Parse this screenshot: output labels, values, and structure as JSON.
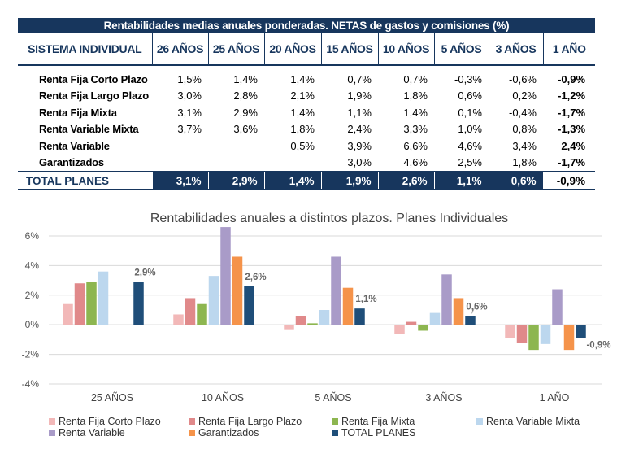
{
  "table": {
    "title": "Rentabilidades medias anuales ponderadas. NETAS de gastos y comisiones (%)",
    "headers": [
      "SISTEMA INDIVIDUAL",
      "26 AÑOS",
      "25 AÑOS",
      "20 AÑOS",
      "15 AÑOS",
      "10 AÑOS",
      "5 AÑOS",
      "3 AÑOS",
      "1 AÑO"
    ],
    "rows": [
      {
        "label": "Renta Fija Corto Plazo",
        "values": [
          "1,5%",
          "1,4%",
          "1,4%",
          "0,7%",
          "0,7%",
          "-0,3%",
          "-0,6%",
          "-0,9%"
        ]
      },
      {
        "label": "Renta Fija Largo Plazo",
        "values": [
          "3,0%",
          "2,8%",
          "2,1%",
          "1,9%",
          "1,8%",
          "0,6%",
          "0,2%",
          "-1,2%"
        ]
      },
      {
        "label": "Renta Fija Mixta",
        "values": [
          "3,1%",
          "2,9%",
          "1,4%",
          "1,1%",
          "1,4%",
          "0,1%",
          "-0,4%",
          "-1,7%"
        ]
      },
      {
        "label": "Renta Variable Mixta",
        "values": [
          "3,7%",
          "3,6%",
          "1,8%",
          "2,4%",
          "3,3%",
          "1,0%",
          "0,8%",
          "-1,3%"
        ]
      },
      {
        "label": "Renta Variable",
        "values": [
          "",
          "",
          "0,5%",
          "3,9%",
          "6,6%",
          "4,6%",
          "3,4%",
          "2,4%"
        ]
      },
      {
        "label": "Garantizados",
        "values": [
          "",
          "",
          "",
          "3,0%",
          "4,6%",
          "2,5%",
          "1,8%",
          "-1,7%"
        ]
      }
    ],
    "total": {
      "label": "TOTAL PLANES",
      "values": [
        "3,1%",
        "2,9%",
        "1,4%",
        "1,9%",
        "2,6%",
        "1,1%",
        "0,6%",
        "-0,9%"
      ]
    }
  },
  "chart_data": {
    "type": "bar",
    "title": "Rentabilidades anuales a distintos plazos. Planes Individuales",
    "categories": [
      "25 AÑOS",
      "10 AÑOS",
      "5 AÑOS",
      "3 AÑOS",
      "1 AÑO"
    ],
    "ylim": [
      -4,
      6
    ],
    "yticks": [
      -4,
      -2,
      0,
      2,
      4,
      6
    ],
    "ytick_labels": [
      "-4%",
      "-2%",
      "0%",
      "2%",
      "4%",
      "6%"
    ],
    "grid": true,
    "legend_position": "bottom",
    "series": [
      {
        "name": "Renta Fija Corto Plazo",
        "color": "#f2b8b8",
        "values": [
          1.4,
          0.7,
          -0.3,
          -0.6,
          -0.9
        ]
      },
      {
        "name": "Renta Fija Largo Plazo",
        "color": "#e0898a",
        "values": [
          2.8,
          1.8,
          0.6,
          0.2,
          -1.2
        ]
      },
      {
        "name": "Renta Fija Mixta",
        "color": "#8db650",
        "values": [
          2.9,
          1.4,
          0.1,
          -0.4,
          -1.7
        ]
      },
      {
        "name": "Renta Variable Mixta",
        "color": "#bcd7ee",
        "values": [
          3.6,
          3.3,
          1.0,
          0.8,
          -1.3
        ]
      },
      {
        "name": "Renta Variable",
        "color": "#a99bc8",
        "values": [
          null,
          6.6,
          4.6,
          3.4,
          2.4
        ]
      },
      {
        "name": "Garantizados",
        "color": "#f5934a",
        "values": [
          null,
          4.6,
          2.5,
          1.8,
          -1.7
        ]
      },
      {
        "name": "TOTAL PLANES",
        "color": "#1f4e79",
        "values": [
          2.9,
          2.6,
          1.1,
          0.6,
          -0.9
        ]
      }
    ],
    "data_labels": [
      "2,9%",
      "2,6%",
      "1,1%",
      "0,6%",
      "-0,9%"
    ]
  }
}
